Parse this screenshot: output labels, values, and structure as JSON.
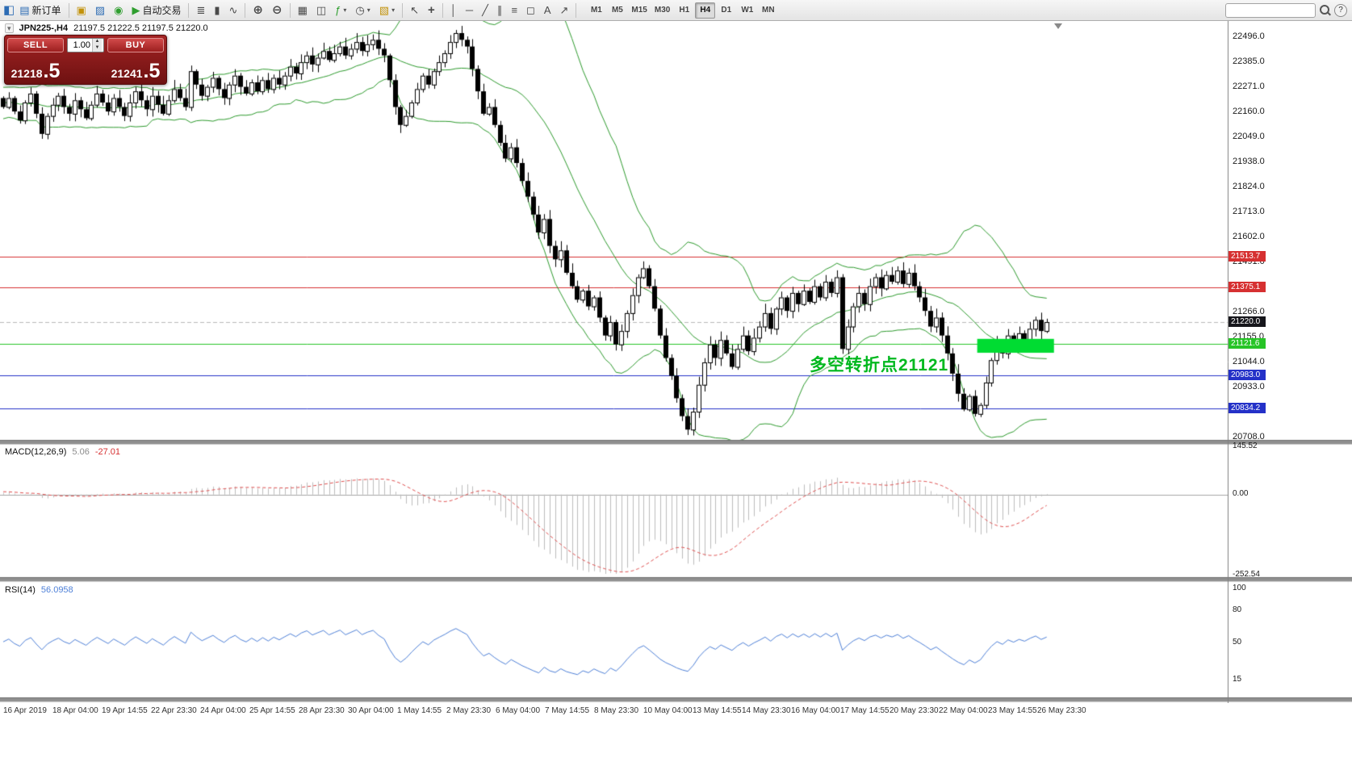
{
  "toolbar": {
    "new_order": "新订单",
    "autotrading": "自动交易",
    "timeframes": [
      "M1",
      "M5",
      "M15",
      "M30",
      "H1",
      "H4",
      "D1",
      "W1",
      "MN"
    ],
    "active_timeframe": "H4",
    "search_value": ""
  },
  "icons": {
    "app": "◧",
    "new_order": "▤",
    "chart_window": "▣",
    "profiles": "▨",
    "refresh": "◉",
    "autotrading_play": "▶",
    "chart_bars": "≣",
    "chart_candles": "▮",
    "chart_line": "∿",
    "zoom_in": "⊕",
    "zoom_out": "⊖",
    "tile_windows": "▦",
    "arrange_windows": "◫",
    "indicators": "ƒ",
    "periods": "◷",
    "templates": "▧",
    "caret": "▾",
    "cursor": "↖",
    "crosshair": "+",
    "vertical_line": "│",
    "horizontal_line": "─",
    "trendline": "╱",
    "channel": "∥",
    "fibonacci": "≡",
    "shapes": "◻",
    "text_tool": "A",
    "arrow_tool": "↗",
    "spin_up": "▲",
    "spin_down": "▼",
    "search": "css-magnifier",
    "help": "?"
  },
  "chart": {
    "symbol_label": "JPN225-,H4",
    "ohlc_values": "21197.5 21222.5 21197.5 21220.0",
    "annotation_text": "多空转折点21121",
    "annotation_color": "#00b81e"
  },
  "trade_widget": {
    "sell_label": "SELL",
    "buy_label": "BUY",
    "lot": "1.00",
    "sell_price_small": "21218",
    "sell_price_big": ".5",
    "buy_price_small": "21241",
    "buy_price_big": ".5"
  },
  "chart_data": {
    "type": "candlestick",
    "symbol": "JPN225-",
    "timeframe": "H4",
    "ohlc_display": {
      "open": "21197.5",
      "high": "21222.5",
      "low": "21197.5",
      "close": "21220.0"
    },
    "ylim": [
      20694,
      22564
    ],
    "closes": [
      22180,
      22220,
      22160,
      22120,
      22200,
      22240,
      22150,
      22060,
      22140,
      22190,
      22230,
      22180,
      22150,
      22210,
      22170,
      22130,
      22190,
      22240,
      22200,
      22160,
      22220,
      22180,
      22140,
      22200,
      22250,
      22210,
      22170,
      22230,
      22190,
      22150,
      22210,
      22260,
      22220,
      22180,
      22340,
      22280,
      22230,
      22270,
      22310,
      22260,
      22220,
      22280,
      22320,
      22270,
      22240,
      22290,
      22250,
      22300,
      22260,
      22310,
      22280,
      22320,
      22360,
      22330,
      22380,
      22410,
      22370,
      22400,
      22430,
      22390,
      22420,
      22450,
      22410,
      22440,
      22470,
      22430,
      22460,
      22480,
      22440,
      22410,
      22300,
      22180,
      22100,
      22140,
      22200,
      22260,
      22320,
      22280,
      22340,
      22380,
      22420,
      22470,
      22510,
      22480,
      22450,
      22350,
      22250,
      22150,
      22180,
      22100,
      22020,
      21950,
      22000,
      21930,
      21850,
      21780,
      21700,
      21620,
      21680,
      21560,
      21500,
      21540,
      21440,
      21380,
      21320,
      21360,
      21290,
      21330,
      21240,
      21160,
      21220,
      21120,
      21180,
      21260,
      21340,
      21420,
      21460,
      21380,
      21280,
      21160,
      21060,
      20980,
      20880,
      20800,
      20740,
      20820,
      20940,
      21040,
      21120,
      21060,
      21140,
      21080,
      21020,
      21100,
      21160,
      21090,
      21150,
      21200,
      21260,
      21190,
      21280,
      21330,
      21270,
      21350,
      21300,
      21360,
      21310,
      21380,
      21330,
      21400,
      21350,
      21420,
      21100,
      21200,
      21290,
      21350,
      21300,
      21380,
      21420,
      21370,
      21430,
      21400,
      21450,
      21390,
      21440,
      21380,
      21330,
      21270,
      21200,
      21240,
      21160,
      21080,
      20990,
      20900,
      20830,
      20890,
      20810,
      20850,
      20950,
      21050,
      21130,
      21080,
      21160,
      21120,
      21170,
      21140,
      21190,
      21230,
      21180,
      21220
    ],
    "bollinger": {
      "period": 20,
      "deviation": 2,
      "color": "#2e9b2e"
    },
    "horizontal_lines": [
      {
        "price": 21513.7,
        "label": "21513.7",
        "color": "#d63031"
      },
      {
        "price": 21375.1,
        "label": "21375.1",
        "color": "#d63031"
      },
      {
        "price": 21121.6,
        "label": "21121.6",
        "color": "#27c427"
      },
      {
        "price": 20983.0,
        "label": "20983.0",
        "color": "#2431c8"
      },
      {
        "price": 20834.2,
        "label": "20834.2",
        "color": "#2431c8"
      }
    ],
    "current_price": {
      "value": 21220.0,
      "label": "21220.0",
      "box_color": "#17171c"
    },
    "highlight_box": {
      "from_candle": 177,
      "to_candle": 189,
      "price_top": 21145,
      "price_bottom": 21083,
      "color": "#00dc32"
    },
    "price_ticks": [
      "22496.0",
      "22385.0",
      "22271.0",
      "22160.0",
      "22049.0",
      "21938.0",
      "21824.0",
      "21713.0",
      "21602.0",
      "21491.0",
      "21266.0",
      "21155.0",
      "21044.0",
      "20933.0",
      "20708.0"
    ],
    "time_ticks": [
      "16 Apr 2019",
      "18 Apr 04:00",
      "19 Apr 14:55",
      "22 Apr 23:30",
      "24 Apr 04:00",
      "25 Apr 14:55",
      "28 Apr 23:30",
      "30 Apr 04:00",
      "1 May 14:55",
      "2 May 23:30",
      "6 May 04:00",
      "7 May 14:55",
      "8 May 23:30",
      "10 May 04:00",
      "13 May 14:55",
      "14 May 23:30",
      "16 May 04:00",
      "17 May 14:55",
      "20 May 23:30",
      "22 May 04:00",
      "23 May 14:55",
      "26 May 23:30"
    ],
    "macd": {
      "name": "MACD(12,26,9)",
      "value": "5.06",
      "signal_value": "-27.01",
      "axis_labels": [
        "145.52",
        "0.00",
        "-252.54"
      ],
      "fast": 12,
      "slow": 26,
      "signal": 9,
      "histogram_color": "#bdbdbd",
      "signal_color": "#e05050"
    },
    "rsi": {
      "name": "RSI(14)",
      "value": "56.0958",
      "period": 14,
      "levels": [
        "100",
        "80",
        "50",
        "15"
      ],
      "color": "#4f81d8"
    }
  }
}
